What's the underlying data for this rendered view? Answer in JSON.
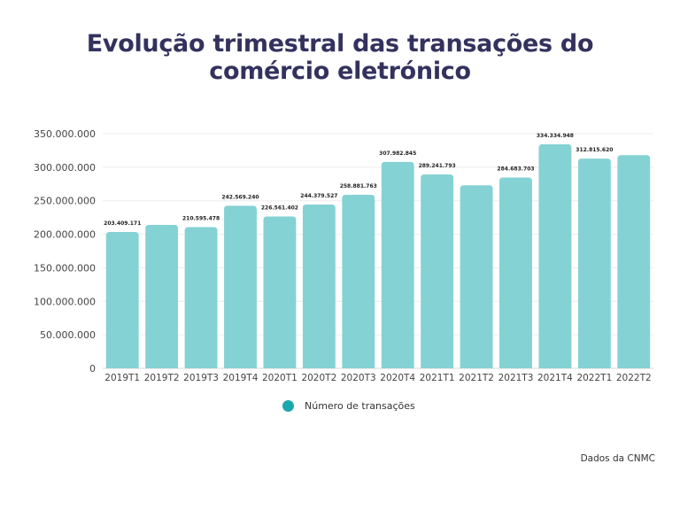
{
  "title_lines": [
    "Evolução trimestral das transações do",
    "comércio eletrónico"
  ],
  "source": "Dados da CNMC",
  "colors": {
    "bar": "#85d2d4",
    "title": "#33325e",
    "legend_marker": "#1aa7ad"
  },
  "chart_data": {
    "type": "bar",
    "title": "Evolução trimestral das transações do comércio eletrónico",
    "xlabel": "",
    "ylabel": "",
    "ylim": [
      0,
      350000000
    ],
    "yticks": [
      0,
      50000000,
      100000000,
      150000000,
      200000000,
      250000000,
      300000000,
      350000000
    ],
    "ytick_labels": [
      "0",
      "50.000.000",
      "100.000.000",
      "150.000.000",
      "200.000.000",
      "250.000.000",
      "300.000.000",
      "350.000.000"
    ],
    "grid": true,
    "legend_position": "bottom-center",
    "categories": [
      "2019T1",
      "2019T2",
      "2019T3",
      "2019T4",
      "2020T1",
      "2020T2",
      "2020T3",
      "2020T4",
      "2021T1",
      "2021T2",
      "2021T3",
      "2021T4",
      "2022T1",
      "2022T2"
    ],
    "series": [
      {
        "name": "Número de transações",
        "values": [
          203409171,
          214000000,
          210595478,
          242569240,
          226561402,
          244379527,
          258881763,
          307982845,
          289241793,
          273000000,
          284683703,
          334334948,
          312815620,
          318000000
        ],
        "data_labels": [
          "203.409.171",
          "",
          "210.595.478",
          "242.569.240",
          "226.561.402",
          "244.379.527",
          "258.881.763",
          "307.982.845",
          "289.241.793",
          "",
          "284.683.703",
          "334.334.948",
          "312.815.620",
          ""
        ]
      }
    ]
  }
}
